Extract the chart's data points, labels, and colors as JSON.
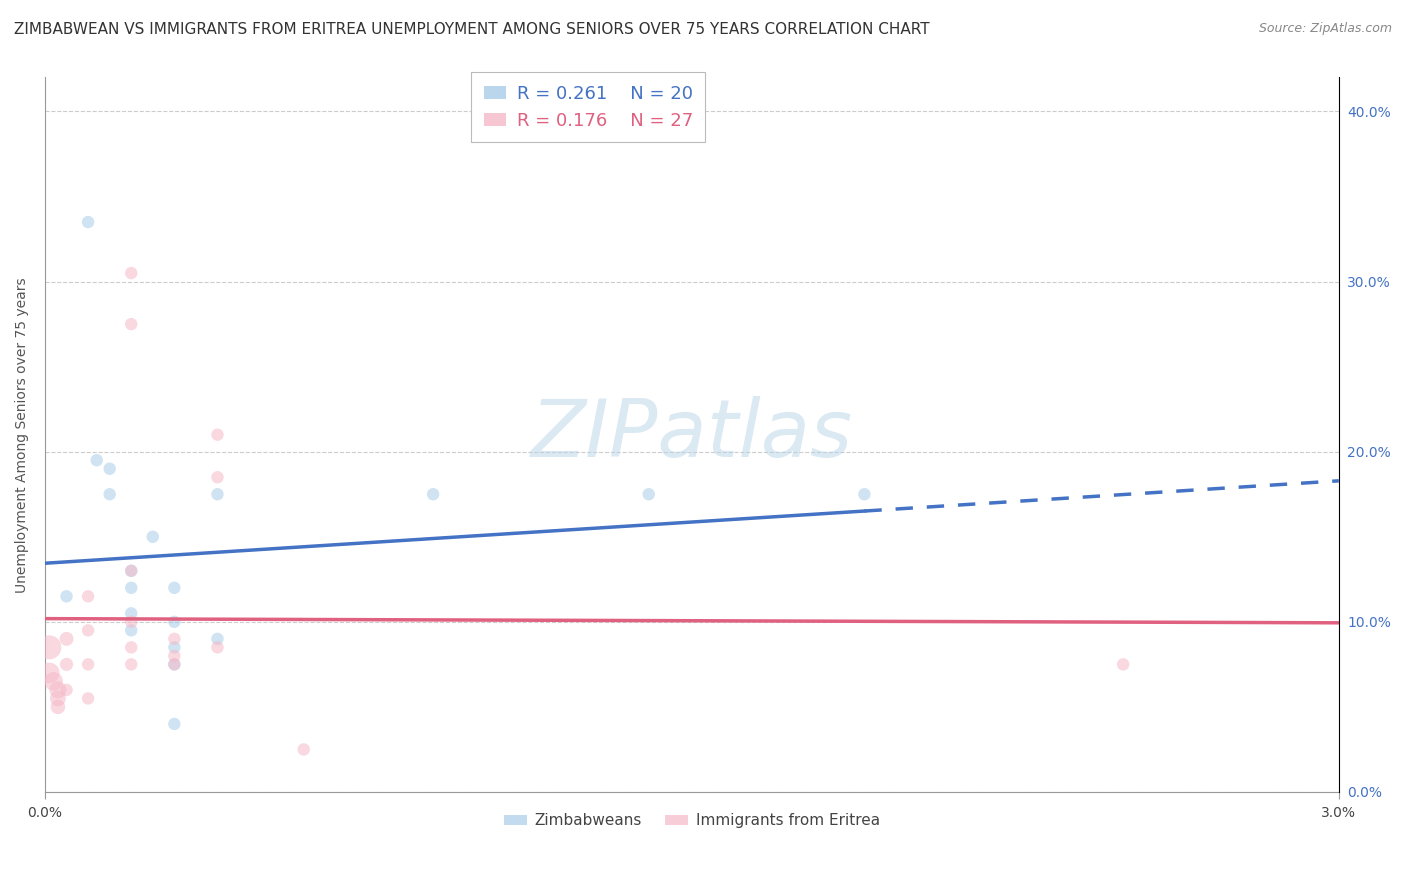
{
  "title": "ZIMBABWEAN VS IMMIGRANTS FROM ERITREA UNEMPLOYMENT AMONG SENIORS OVER 75 YEARS CORRELATION CHART",
  "source": "Source: ZipAtlas.com",
  "ylabel": "Unemployment Among Seniors over 75 years",
  "xlim": [
    0.0,
    0.03
  ],
  "ylim": [
    0.0,
    0.42
  ],
  "legend_blue_r": "R = 0.261",
  "legend_blue_n": "N = 20",
  "legend_pink_r": "R = 0.176",
  "legend_pink_n": "N = 27",
  "blue_label": "Zimbabweans",
  "pink_label": "Immigrants from Eritrea",
  "blue_color": "#a8cce8",
  "pink_color": "#f5b8c8",
  "blue_line_color": "#4472c4",
  "pink_line_color": "#e06080",
  "blue_scatter_x": [
    0.0005,
    0.001,
    0.0012,
    0.0015,
    0.0015,
    0.002,
    0.002,
    0.002,
    0.002,
    0.0025,
    0.003,
    0.003,
    0.003,
    0.003,
    0.003,
    0.004,
    0.004,
    0.009,
    0.014,
    0.019
  ],
  "blue_scatter_y": [
    0.115,
    0.335,
    0.195,
    0.19,
    0.175,
    0.13,
    0.12,
    0.105,
    0.095,
    0.15,
    0.12,
    0.1,
    0.085,
    0.075,
    0.04,
    0.175,
    0.09,
    0.175,
    0.175,
    0.175
  ],
  "blue_sizes": [
    80,
    80,
    80,
    80,
    80,
    80,
    80,
    80,
    80,
    80,
    80,
    80,
    80,
    80,
    80,
    80,
    80,
    80,
    80,
    80
  ],
  "pink_scatter_x": [
    0.0001,
    0.0001,
    0.0002,
    0.0003,
    0.0003,
    0.0003,
    0.0005,
    0.0005,
    0.0005,
    0.001,
    0.001,
    0.001,
    0.001,
    0.002,
    0.002,
    0.002,
    0.002,
    0.002,
    0.002,
    0.003,
    0.003,
    0.003,
    0.004,
    0.004,
    0.004,
    0.006,
    0.025
  ],
  "pink_scatter_y": [
    0.085,
    0.07,
    0.065,
    0.06,
    0.055,
    0.05,
    0.09,
    0.075,
    0.06,
    0.115,
    0.095,
    0.075,
    0.055,
    0.305,
    0.275,
    0.13,
    0.1,
    0.085,
    0.075,
    0.09,
    0.08,
    0.075,
    0.21,
    0.185,
    0.085,
    0.025,
    0.075
  ],
  "pink_sizes": [
    300,
    220,
    180,
    150,
    130,
    110,
    100,
    90,
    80,
    80,
    80,
    80,
    80,
    80,
    80,
    80,
    80,
    80,
    80,
    80,
    80,
    80,
    80,
    80,
    80,
    80,
    80
  ],
  "ytick_vals": [
    0.0,
    0.1,
    0.2,
    0.3,
    0.4
  ],
  "ytick_labels_right": [
    "0.0%",
    "10.0%",
    "20.0%",
    "30.0%",
    "40.0%"
  ],
  "xtick_vals": [
    0.0,
    0.03
  ],
  "xtick_labels": [
    "0.0%",
    "3.0%"
  ],
  "watermark": "ZIPatlas",
  "title_fontsize": 11,
  "source_fontsize": 9,
  "axis_fontsize": 10,
  "blue_line_solid_end": 0.019,
  "blue_line_start": 0.0
}
